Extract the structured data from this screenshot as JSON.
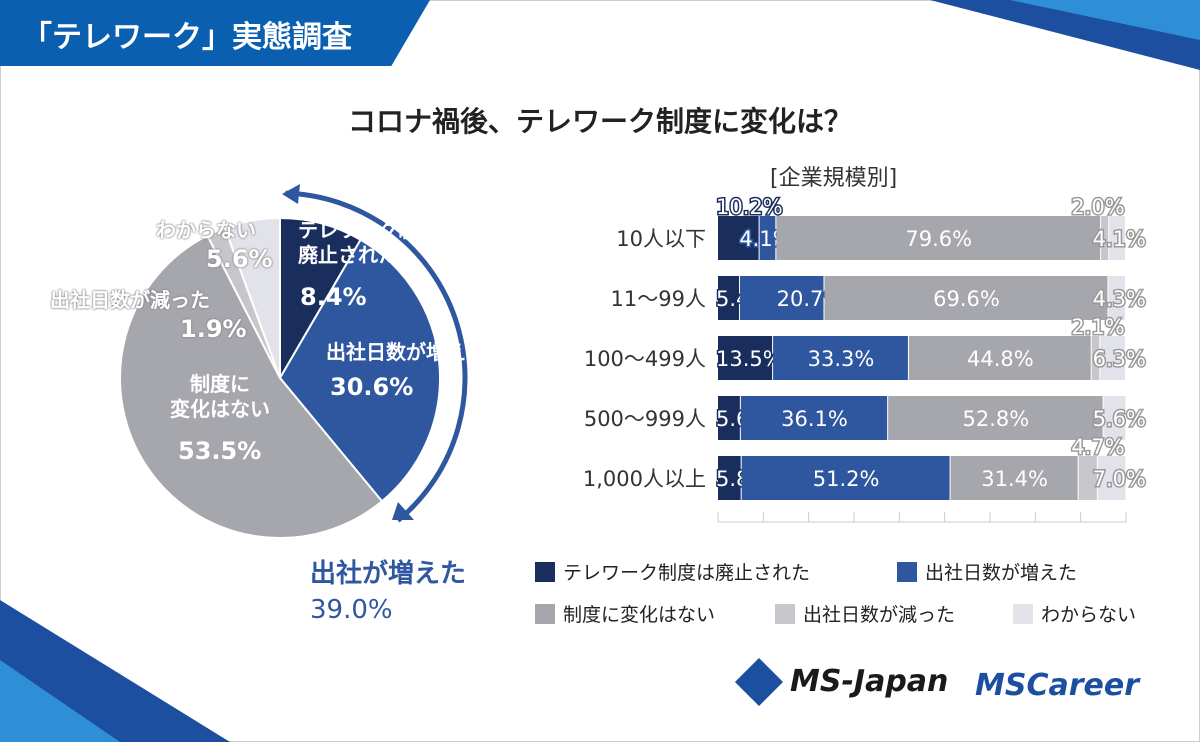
{
  "header": {
    "banner": "「テレワーク」実態調査",
    "title": "コロナ禍後、テレワーク制度に変化は？"
  },
  "colors": [
    "#1a2e5e",
    "#2f57a0",
    "#a6a6ad",
    "#c6c6cb",
    "#e1e2ea"
  ],
  "categories_legend": [
    "テレワーク制度は廃止された",
    "出社日数が増えた",
    "制度に変化はない",
    "出社日数が減った",
    "わからない"
  ],
  "pie": {
    "labels": {
      "abolished": "テレワーク制度は\n廃止された",
      "increased": "出社日数が増えた",
      "nochange": "制度に\n変化はない",
      "decreased": "出社日数が減った",
      "unknown": "わからない"
    },
    "values": [
      8.4,
      30.6,
      53.5,
      1.9,
      5.6
    ],
    "value_labels": [
      "8.4%",
      "30.6%",
      "53.5%",
      "1.9%",
      "5.6%"
    ],
    "summary_label": "出社が増えた",
    "summary_value": "39.0%"
  },
  "chart_data": {
    "type": "bar",
    "stacked": true,
    "orientation": "horizontal",
    "subtitle": "[企業規模別]",
    "categories": [
      "10人以下",
      "11〜99人",
      "100〜499人",
      "500〜999人",
      "1,000人以上"
    ],
    "series": [
      {
        "name": "テレワーク制度は廃止された",
        "values": [
          10.2,
          5.4,
          13.5,
          5.6,
          5.8
        ]
      },
      {
        "name": "出社日数が増えた",
        "values": [
          4.1,
          20.7,
          33.3,
          36.1,
          51.2
        ]
      },
      {
        "name": "制度に変化はない",
        "values": [
          79.6,
          69.6,
          44.8,
          52.8,
          31.4
        ]
      },
      {
        "name": "出社日数が減った",
        "values": [
          2.0,
          0,
          2.1,
          0,
          4.7
        ]
      },
      {
        "name": "わからない",
        "values": [
          4.1,
          4.3,
          6.3,
          5.6,
          7.0
        ]
      }
    ],
    "xlim": [
      0,
      100
    ],
    "legend": "bottom"
  },
  "logos": {
    "ms_japan": "MS-Japan",
    "ms_career": "MSCareer"
  }
}
